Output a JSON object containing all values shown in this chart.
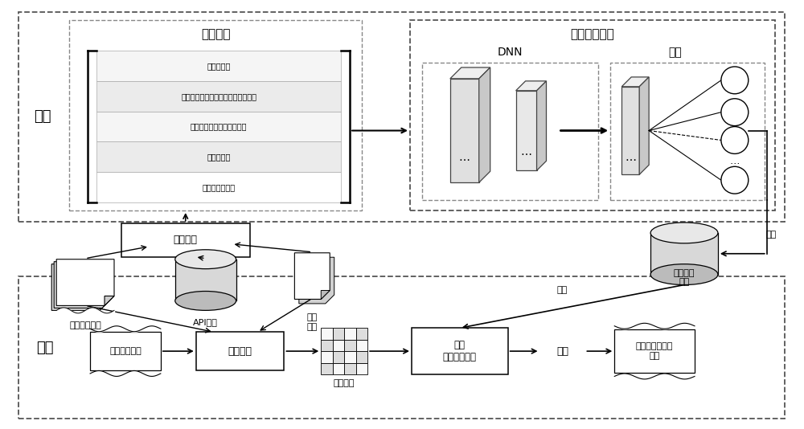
{
  "bg_color": "#ffffff",
  "train_label": "训练",
  "apply_label": "应用",
  "feature_matrix_label": "特征矩阵",
  "feature_combo_label": "特征组合模型",
  "dnn_label": "DNN",
  "output_label": "输出",
  "rows": [
    "文本相似度",
    "基于协同过滤算法的缺陷报告相似度",
    "基于缺陷修复历史的相似度",
    "类名相似度",
    "结构信息相似度"
  ],
  "feature_extract_label": "特征提取",
  "hist_bug_label": "历史缺陷报告",
  "api_doc_label": "API文档",
  "code_file_label": "代码\n文件",
  "new_bug_label": "新的缺陷报告",
  "feature_extract2_label": "特征提取",
  "feature_matrix2_label": "特征矩阵",
  "apply_model_label": "应用\n缺陷定位模型",
  "rank_label": "排序",
  "predicted_label": "预测的缺陷文件\n列表",
  "save_label": "保存",
  "load_label": "载入",
  "bug_locate_model_label": "缺陷定位\n模型",
  "row_bg_colors": [
    "#f5f5f5",
    "#ebebeb",
    "#f5f5f5",
    "#ebebeb",
    "#ffffff"
  ]
}
